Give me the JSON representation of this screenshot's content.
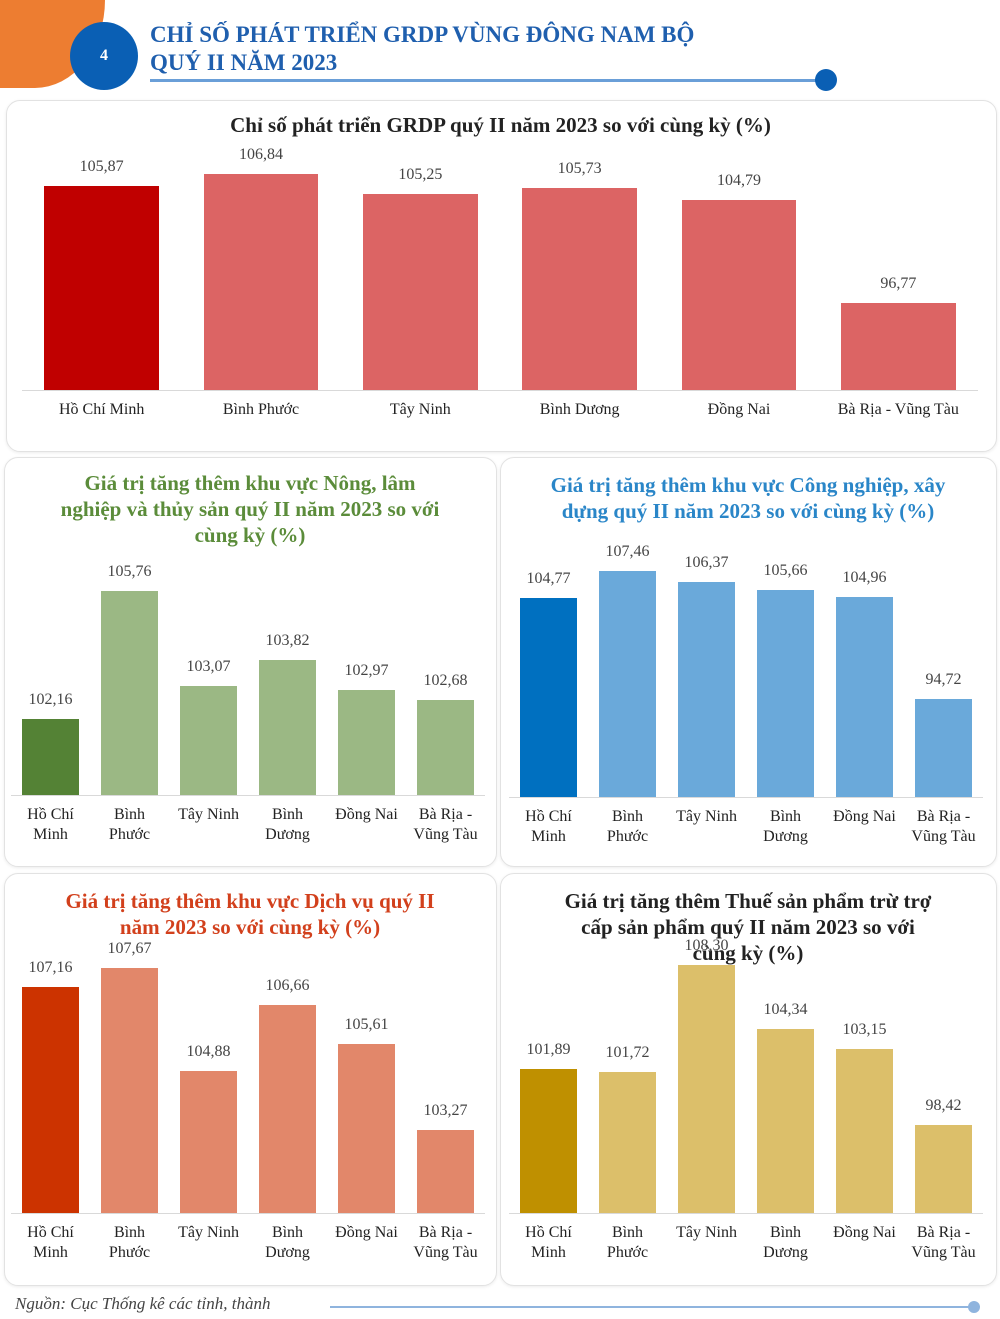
{
  "header": {
    "page_number": "4",
    "title_line1": "CHỈ SỐ PHÁT TRIỂN GRDP VÙNG ĐÔNG NAM BỘ",
    "title_line2": "QUÝ II NĂM 2023"
  },
  "chart_data": [
    {
      "type": "bar",
      "title": "Chỉ số phát triển GRDP quý II năm 2023 so với cùng kỳ (%)",
      "categories": [
        "Hồ Chí Minh",
        "Bình Phước",
        "Tây Ninh",
        "Bình Dương",
        "Đồng Nai",
        "Bà Rịa - Vũng Tàu"
      ],
      "values": [
        105.87,
        106.84,
        105.25,
        105.73,
        104.79,
        96.77
      ],
      "value_labels": [
        "105,87",
        "106,84",
        "105,25",
        "105,73",
        "104,79",
        "96,77"
      ],
      "colors": [
        "#c00000",
        "#dc6464",
        "#dc6464",
        "#dc6464",
        "#dc6464",
        "#dc6464"
      ],
      "ylim": [
        90,
        108
      ]
    },
    {
      "type": "bar",
      "title": "Giá trị tăng thêm khu vực Nông, lâm nghiệp và thủy sản quý II năm 2023 so với cùng kỳ (%)",
      "categories": [
        "Hồ Chí Minh",
        "Bình Phước",
        "Tây Ninh",
        "Bình Dương",
        "Đồng Nai",
        "Bà Rịa - Vũng Tàu"
      ],
      "values": [
        102.16,
        105.76,
        103.07,
        103.82,
        102.97,
        102.68
      ],
      "value_labels": [
        "102,16",
        "105,76",
        "103,07",
        "103,82",
        "102,97",
        "102,68"
      ],
      "colors": [
        "#548235",
        "#9bb884",
        "#9bb884",
        "#9bb884",
        "#9bb884",
        "#9bb884"
      ],
      "ylim": [
        100,
        106.5
      ]
    },
    {
      "type": "bar",
      "title": "Giá trị tăng thêm khu vực Công nghiệp, xây dựng quý II năm 2023 so với cùng kỳ (%)",
      "categories": [
        "Hồ Chí Minh",
        "Bình Phước",
        "Tây Ninh",
        "Bình Dương",
        "Đồng Nai",
        "Bà Rịa - Vũng Tàu"
      ],
      "values": [
        104.77,
        107.46,
        106.37,
        105.66,
        104.96,
        94.72
      ],
      "value_labels": [
        "104,77",
        "107,46",
        "106,37",
        "105,66",
        "104,96",
        "94,72"
      ],
      "colors": [
        "#0070c0",
        "#6aa9da",
        "#6aa9da",
        "#6aa9da",
        "#6aa9da",
        "#6aa9da"
      ],
      "ylim": [
        85,
        108
      ]
    },
    {
      "type": "bar",
      "title": "Giá trị tăng thêm khu vực Dịch vụ quý II năm 2023 so với cùng kỳ (%)",
      "categories": [
        "Hồ Chí Minh",
        "Bình Phước",
        "Tây Ninh",
        "Bình Dương",
        "Đồng Nai",
        "Bà Rịa - Vũng Tàu"
      ],
      "values": [
        107.16,
        107.67,
        104.88,
        106.66,
        105.61,
        103.27
      ],
      "value_labels": [
        "107,16",
        "107,67",
        "104,88",
        "106,66",
        "105,61",
        "103,27"
      ],
      "colors": [
        "#cc3300",
        "#e2876a",
        "#e2876a",
        "#e2876a",
        "#e2876a",
        "#e2876a"
      ],
      "ylim": [
        101,
        108
      ]
    },
    {
      "type": "bar",
      "title": "Giá trị tăng thêm Thuế sản phẩm trừ trợ cấp sản phẩm quý II năm 2023 so với cùng kỳ (%)",
      "categories": [
        "Hồ Chí Minh",
        "Bình Phước",
        "Tây Ninh",
        "Bình Dương",
        "Đồng Nai",
        "Bà Rịa - Vũng Tàu"
      ],
      "values": [
        101.89,
        101.72,
        108.3,
        104.34,
        103.15,
        98.42
      ],
      "value_labels": [
        "101,89",
        "101,72",
        "108,30",
        "104,34",
        "103,15",
        "98,42"
      ],
      "colors": [
        "#bf9000",
        "#dcbf6a",
        "#dcbf6a",
        "#dcbf6a",
        "#dcbf6a",
        "#dcbf6a"
      ],
      "ylim": [
        93,
        109
      ]
    }
  ],
  "source": "Nguồn: Cục Thống kê các tỉnh, thành"
}
